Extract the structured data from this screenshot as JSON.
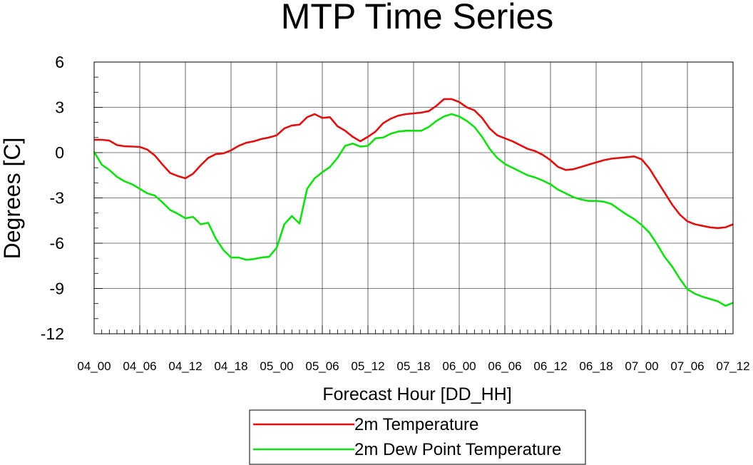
{
  "chart_data": {
    "type": "line",
    "title": "MTP Time Series",
    "xlabel": "Forecast Hour [DD_HH]",
    "ylabel": "Degrees [C]",
    "x_unit": "hours from 04_00",
    "xlim": [
      0,
      84
    ],
    "ylim": [
      -12,
      6
    ],
    "x_ticks": [
      0,
      6,
      12,
      18,
      24,
      30,
      36,
      42,
      48,
      54,
      60,
      66,
      72,
      78,
      84
    ],
    "x_tick_labels": [
      "04_00",
      "04_06",
      "04_12",
      "04_18",
      "05_00",
      "05_06",
      "05_12",
      "05_18",
      "06_00",
      "06_06",
      "06_12",
      "06_18",
      "07_00",
      "07_06",
      "07_12"
    ],
    "y_ticks": [
      -12,
      -9,
      -6,
      -3,
      0,
      3,
      6
    ],
    "y_tick_labels": [
      "-12",
      "-9",
      "-6",
      "-3",
      "0",
      "3",
      "6"
    ],
    "grid": true,
    "legend": "bottom-center",
    "series": [
      {
        "name": "2m Temperature",
        "color": "#e01010",
        "x": [
          0,
          1,
          2,
          3,
          4,
          5,
          6,
          7,
          8,
          9,
          10,
          11,
          12,
          13,
          14,
          15,
          16,
          17,
          18,
          19,
          20,
          21,
          22,
          23,
          24,
          25,
          26,
          27,
          28,
          29,
          30,
          31,
          32,
          33,
          34,
          35,
          36,
          37,
          38,
          39,
          40,
          41,
          42,
          43,
          44,
          45,
          46,
          47,
          48,
          49,
          50,
          51,
          52,
          53,
          54,
          55,
          56,
          57,
          58,
          59,
          60,
          61,
          62,
          63,
          64,
          65,
          66,
          67,
          68,
          69,
          70,
          71,
          72,
          73,
          74,
          75,
          76,
          77,
          78,
          79,
          80,
          81,
          82,
          83,
          84
        ],
        "values": [
          0.85,
          0.85,
          0.8,
          0.5,
          0.42,
          0.4,
          0.38,
          0.2,
          -0.2,
          -0.8,
          -1.35,
          -1.55,
          -1.7,
          -1.4,
          -0.85,
          -0.35,
          -0.1,
          -0.05,
          0.15,
          0.45,
          0.65,
          0.75,
          0.9,
          1.0,
          1.15,
          1.6,
          1.8,
          1.85,
          2.35,
          2.55,
          2.3,
          2.35,
          1.75,
          1.45,
          1.05,
          0.75,
          1.05,
          1.4,
          1.95,
          2.25,
          2.45,
          2.55,
          2.6,
          2.65,
          2.75,
          3.1,
          3.55,
          3.55,
          3.35,
          3.0,
          2.8,
          2.3,
          1.6,
          1.15,
          0.95,
          0.75,
          0.5,
          0.25,
          0.1,
          -0.15,
          -0.5,
          -0.95,
          -1.15,
          -1.1,
          -0.95,
          -0.8,
          -0.65,
          -0.5,
          -0.4,
          -0.35,
          -0.3,
          -0.25,
          -0.45,
          -1.05,
          -1.85,
          -2.65,
          -3.45,
          -4.1,
          -4.55,
          -4.75,
          -4.85,
          -4.95,
          -5.0,
          -4.95,
          -4.75
        ]
      },
      {
        "name": "2m Dew Point Temperature",
        "color": "#10e010",
        "x": [
          0,
          1,
          2,
          3,
          4,
          5,
          6,
          7,
          8,
          9,
          10,
          11,
          12,
          13,
          14,
          15,
          16,
          17,
          18,
          19,
          20,
          21,
          22,
          23,
          24,
          25,
          26,
          27,
          28,
          29,
          30,
          31,
          32,
          33,
          34,
          35,
          36,
          37,
          38,
          39,
          40,
          41,
          42,
          43,
          44,
          45,
          46,
          47,
          48,
          49,
          50,
          51,
          52,
          53,
          54,
          55,
          56,
          57,
          58,
          59,
          60,
          61,
          62,
          63,
          64,
          65,
          66,
          67,
          68,
          69,
          70,
          71,
          72,
          73,
          74,
          75,
          76,
          77,
          78,
          79,
          80,
          81,
          82,
          83,
          84
        ],
        "values": [
          0.05,
          -0.8,
          -1.15,
          -1.6,
          -1.9,
          -2.1,
          -2.4,
          -2.7,
          -2.85,
          -3.3,
          -3.8,
          -4.05,
          -4.35,
          -4.25,
          -4.75,
          -4.65,
          -5.7,
          -6.45,
          -6.95,
          -6.95,
          -7.1,
          -7.05,
          -6.95,
          -6.9,
          -6.3,
          -4.75,
          -4.2,
          -4.7,
          -2.4,
          -1.7,
          -1.3,
          -0.95,
          -0.35,
          0.45,
          0.6,
          0.4,
          0.45,
          0.95,
          1.0,
          1.25,
          1.4,
          1.45,
          1.45,
          1.45,
          1.7,
          2.1,
          2.4,
          2.55,
          2.4,
          2.1,
          1.7,
          1.05,
          0.25,
          -0.35,
          -0.75,
          -1.0,
          -1.25,
          -1.5,
          -1.65,
          -1.85,
          -2.1,
          -2.45,
          -2.7,
          -2.95,
          -3.1,
          -3.2,
          -3.2,
          -3.25,
          -3.4,
          -3.75,
          -4.1,
          -4.4,
          -4.8,
          -5.3,
          -6.05,
          -6.9,
          -7.55,
          -8.35,
          -9.05,
          -9.35,
          -9.55,
          -9.7,
          -9.85,
          -10.15,
          -9.95
        ]
      }
    ]
  }
}
